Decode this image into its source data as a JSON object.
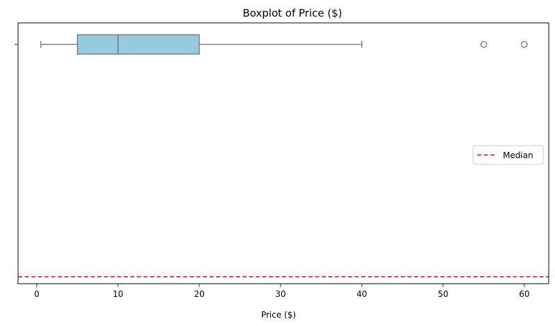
{
  "chart_data": {
    "type": "boxplot",
    "title": "Boxplot of Price ($)",
    "xlabel": "Price ($)",
    "ylabel": "",
    "xlim": [
      -2.3,
      63.0
    ],
    "xticks": [
      0,
      10,
      20,
      30,
      40,
      50,
      60
    ],
    "grid": false,
    "orientation": "horizontal",
    "box": {
      "whisker_low": 0.5,
      "q1": 5,
      "median": 10,
      "q3": 20,
      "whisker_high": 40,
      "outliers": [
        55,
        60
      ],
      "fill_color": "#95cbe1",
      "line_color": "#6b6b6b"
    },
    "reference_line": {
      "label": "Median",
      "orientation": "horizontal",
      "style": "dashed",
      "color": "#ff0000"
    },
    "legend": {
      "placement": "center-right",
      "entries": [
        "Median"
      ]
    }
  }
}
